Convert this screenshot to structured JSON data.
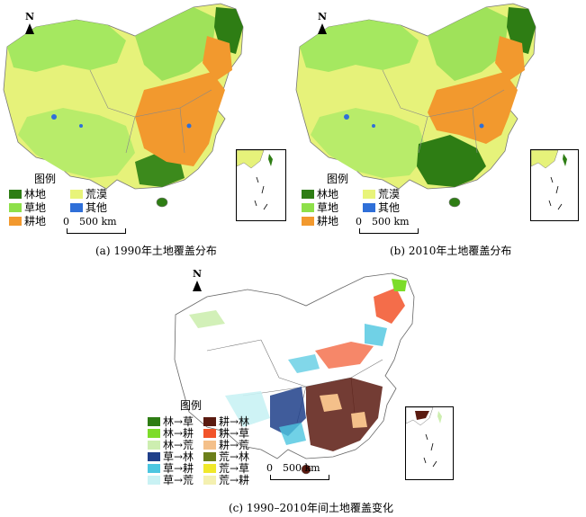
{
  "panel_a": {
    "caption": "(a) 1990年土地覆盖分布",
    "north": "N",
    "legend_title": "图例",
    "legend": [
      {
        "label": "林地",
        "color": "#2e7d14"
      },
      {
        "label": "草地",
        "color": "#8ee04a"
      },
      {
        "label": "耕地",
        "color": "#f2992e"
      },
      {
        "label": "荒漠",
        "color": "#e8f47a"
      },
      {
        "label": "其他",
        "color": "#2f6fd8"
      }
    ],
    "scale_zero": "0",
    "scale_label": "500 km"
  },
  "panel_b": {
    "caption": "(b) 2010年土地覆盖分布",
    "north": "N",
    "legend_title": "图例",
    "legend": [
      {
        "label": "林地",
        "color": "#2e7d14"
      },
      {
        "label": "草地",
        "color": "#8ee04a"
      },
      {
        "label": "耕地",
        "color": "#f2992e"
      },
      {
        "label": "荒漠",
        "color": "#e8f47a"
      },
      {
        "label": "其他",
        "color": "#2f6fd8"
      }
    ],
    "scale_zero": "0",
    "scale_label": "500 km"
  },
  "panel_c": {
    "caption": "(c) 1990–2010年间土地覆盖变化",
    "north": "N",
    "legend_title": "图例",
    "legend_left": [
      {
        "label": "林→草",
        "color": "#2e7d14"
      },
      {
        "label": "林→耕",
        "color": "#7ddc2a"
      },
      {
        "label": "林→荒",
        "color": "#cdeeb0"
      },
      {
        "label": "草→林",
        "color": "#1f3f8a"
      },
      {
        "label": "草→耕",
        "color": "#4cc6e0"
      },
      {
        "label": "草→荒",
        "color": "#c9f2f4"
      }
    ],
    "legend_right": [
      {
        "label": "耕→林",
        "color": "#5a1a10"
      },
      {
        "label": "耕→草",
        "color": "#f2542a"
      },
      {
        "label": "耕→荒",
        "color": "#f4c08a"
      },
      {
        "label": "荒→林",
        "color": "#6b7f1a"
      },
      {
        "label": "荒→草",
        "color": "#f0e82a"
      },
      {
        "label": "荒→耕",
        "color": "#f4f0b0"
      }
    ],
    "scale_zero": "0",
    "scale_label": "500 km"
  }
}
